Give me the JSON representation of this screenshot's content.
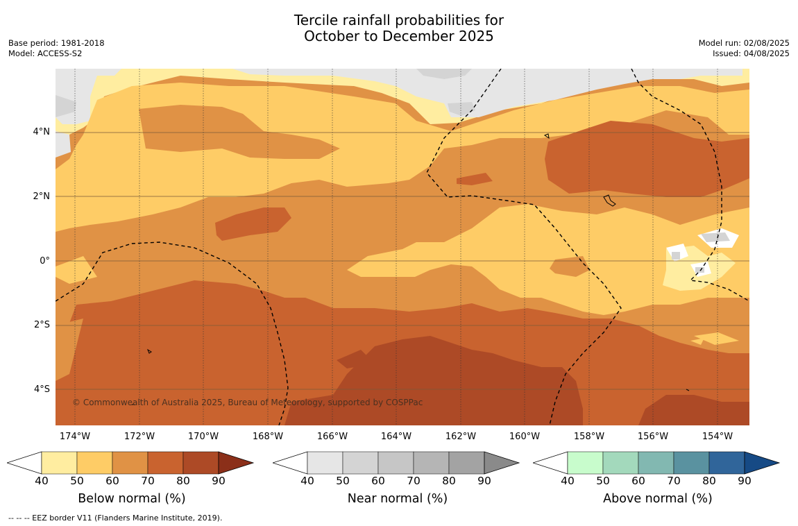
{
  "title": {
    "line1": "Tercile rainfall probabilities for",
    "line2": "October to December 2025"
  },
  "meta": {
    "base_period": "Base period: 1981-2018",
    "model": "Model: ACCESS-S2",
    "model_run": "Model run: 02/08/2025",
    "issued": "Issued: 04/08/2025"
  },
  "map": {
    "lat_labels": [
      "4°N",
      "2°N",
      "0°",
      "2°S",
      "4°S"
    ],
    "lon_labels": [
      "174°W",
      "172°W",
      "170°W",
      "168°W",
      "166°W",
      "164°W",
      "162°W",
      "160°W",
      "158°W",
      "156°W",
      "154°W"
    ],
    "copyright": "© Commonwealth of Australia 2025, Bureau of Meteorology, supported by COSPPac",
    "colors": {
      "below_50": "#ffeda0",
      "below_60": "#fecc66",
      "below_70": "#e09245",
      "below_80": "#c9632f",
      "below_90": "#ad4a26",
      "near_40": "#e6e6e6",
      "near_50": "#d4d4d4"
    }
  },
  "colorbars": [
    {
      "title": "Below normal (%)",
      "ticks": [
        "40",
        "50",
        "60",
        "70",
        "80",
        "90"
      ],
      "colors": [
        "#ffffff",
        "#ffeda0",
        "#fecc66",
        "#e09245",
        "#c9632f",
        "#ad4a26",
        "#8b2f19"
      ]
    },
    {
      "title": "Near normal (%)",
      "ticks": [
        "40",
        "50",
        "60",
        "70",
        "80",
        "90"
      ],
      "colors": [
        "#ffffff",
        "#e6e6e6",
        "#d4d4d4",
        "#c6c6c6",
        "#b5b5b5",
        "#a3a3a3",
        "#8a8a8a"
      ]
    },
    {
      "title": "Above normal (%)",
      "ticks": [
        "40",
        "50",
        "60",
        "70",
        "80",
        "90"
      ],
      "colors": [
        "#ffffff",
        "#c8fccc",
        "#a3d9bc",
        "#82b8b1",
        "#5a92a0",
        "#30659a",
        "#164a85"
      ]
    }
  ],
  "footer": "-- -- -- EEZ border V11 (Flanders Marine Institute, 2019)."
}
